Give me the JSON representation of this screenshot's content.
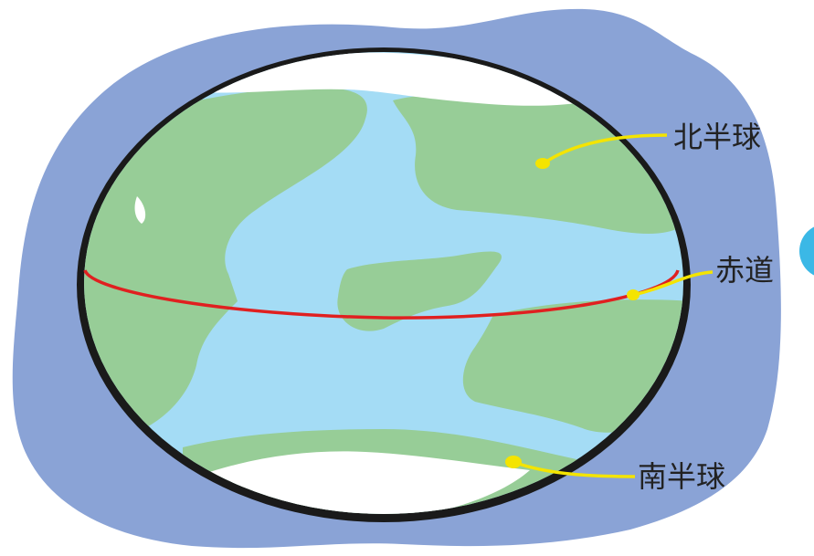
{
  "labels": {
    "north": "北半球",
    "equator": "赤道",
    "south": "南半球"
  }
}
